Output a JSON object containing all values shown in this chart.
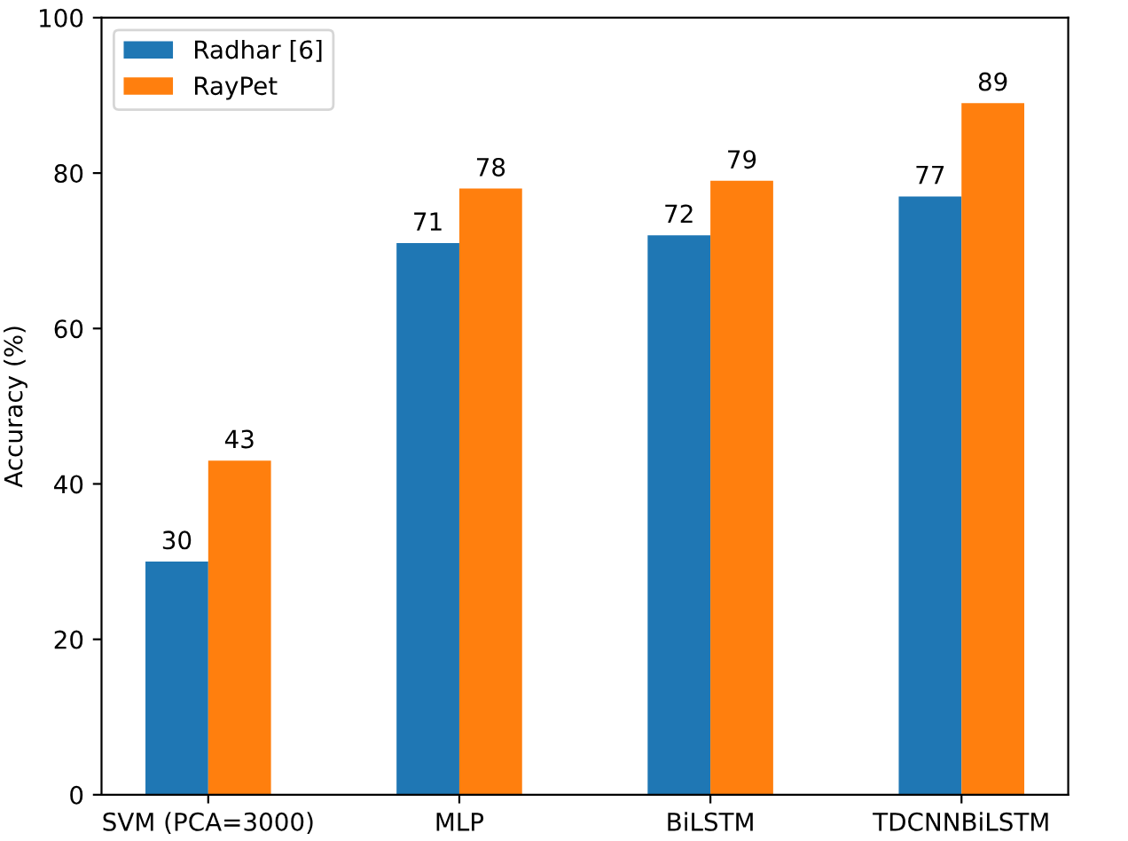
{
  "chart_data": {
    "type": "bar",
    "ylabel": "Accuracy (%)",
    "categories": [
      "SVM (PCA=3000)",
      "MLP",
      "BiLSTM",
      "TDCNNBiLSTM"
    ],
    "series": [
      {
        "name": "Radhar [6]",
        "color": "#1f77b4",
        "values": [
          30,
          71,
          72,
          77
        ]
      },
      {
        "name": "RayPet",
        "color": "#ff7f0e",
        "values": [
          43,
          78,
          79,
          89
        ]
      }
    ],
    "ylim": [
      0,
      100
    ],
    "yticks": [
      0,
      20,
      40,
      60,
      80,
      100
    ],
    "grid": false,
    "legend": "top left",
    "data_labels": true
  }
}
